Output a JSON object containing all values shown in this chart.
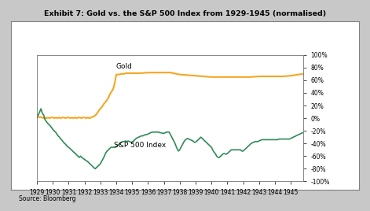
{
  "title": "Exhibit 7: Gold vs. the S&P 500 Index from 1929-1945 (normalised)",
  "source": "Source: Bloomberg",
  "gold_color": "#F5A623",
  "sp500_color": "#2E8B57",
  "gold_label": "Gold",
  "sp500_label": "S&P 500 Index",
  "background_outer": "#D0D0D0",
  "background_inner": "#FFFFFF",
  "xlim": [
    1929.0,
    1945.8
  ],
  "ylim": [
    -1.0,
    1.0
  ],
  "yticks_right": [
    1.0,
    0.8,
    0.6,
    0.4,
    0.2,
    0.0,
    -0.2,
    -0.4,
    -0.6,
    -0.8,
    -1.0
  ],
  "ytick_labels_right": [
    "100%",
    "80%",
    "60%",
    "40%",
    "20%",
    "0%",
    "-20%",
    "-40%",
    "-60%",
    "-80%",
    "-100%"
  ],
  "xticks": [
    1929,
    1930,
    1931,
    1932,
    1933,
    1934,
    1935,
    1936,
    1937,
    1938,
    1939,
    1940,
    1941,
    1942,
    1943,
    1944,
    1945
  ],
  "gold_x": [
    1929.0,
    1929.1,
    1929.2,
    1929.3,
    1929.4,
    1929.5,
    1929.6,
    1929.7,
    1929.8,
    1929.9,
    1930.0,
    1930.1,
    1930.2,
    1930.3,
    1930.4,
    1930.5,
    1930.6,
    1930.7,
    1930.8,
    1930.9,
    1931.0,
    1931.1,
    1931.2,
    1931.3,
    1931.4,
    1931.5,
    1931.6,
    1931.7,
    1931.8,
    1931.9,
    1932.0,
    1932.1,
    1932.2,
    1932.3,
    1932.4,
    1932.5,
    1932.6,
    1932.7,
    1932.8,
    1932.9,
    1933.0,
    1933.1,
    1933.2,
    1933.3,
    1933.4,
    1933.5,
    1933.6,
    1933.7,
    1933.8,
    1933.9,
    1934.0,
    1934.1,
    1934.2,
    1934.3,
    1934.4,
    1934.5,
    1934.6,
    1934.7,
    1934.8,
    1934.9,
    1935.0,
    1935.5,
    1936.0,
    1936.5,
    1937.0,
    1937.2,
    1937.4,
    1937.6,
    1937.8,
    1938.0,
    1938.5,
    1939.0,
    1939.5,
    1940.0,
    1940.5,
    1941.0,
    1941.5,
    1942.0,
    1942.5,
    1943.0,
    1943.5,
    1944.0,
    1944.5,
    1945.0,
    1945.5,
    1945.8
  ],
  "gold_y": [
    0.02,
    0.01,
    0.02,
    0.01,
    0.0,
    0.01,
    0.0,
    0.01,
    0.0,
    0.01,
    0.01,
    0.0,
    0.01,
    0.0,
    0.01,
    0.0,
    0.01,
    0.01,
    0.0,
    0.01,
    0.01,
    0.0,
    0.01,
    0.0,
    0.01,
    0.0,
    0.01,
    0.01,
    0.0,
    0.01,
    0.01,
    0.0,
    0.01,
    0.0,
    0.01,
    0.02,
    0.03,
    0.05,
    0.08,
    0.12,
    0.15,
    0.18,
    0.22,
    0.25,
    0.28,
    0.32,
    0.38,
    0.42,
    0.46,
    0.55,
    0.69,
    0.69,
    0.69,
    0.7,
    0.7,
    0.7,
    0.71,
    0.71,
    0.71,
    0.71,
    0.71,
    0.71,
    0.72,
    0.72,
    0.72,
    0.72,
    0.72,
    0.71,
    0.7,
    0.69,
    0.68,
    0.67,
    0.66,
    0.65,
    0.65,
    0.65,
    0.65,
    0.65,
    0.65,
    0.66,
    0.66,
    0.66,
    0.66,
    0.67,
    0.69,
    0.7
  ],
  "sp500_x": [
    1929.0,
    1929.08,
    1929.17,
    1929.25,
    1929.33,
    1929.42,
    1929.5,
    1929.58,
    1929.67,
    1929.75,
    1929.83,
    1929.92,
    1930.0,
    1930.08,
    1930.17,
    1930.25,
    1930.33,
    1930.42,
    1930.5,
    1930.58,
    1930.67,
    1930.75,
    1930.83,
    1930.92,
    1931.0,
    1931.08,
    1931.17,
    1931.25,
    1931.33,
    1931.42,
    1931.5,
    1931.58,
    1931.67,
    1931.75,
    1931.83,
    1931.92,
    1932.0,
    1932.08,
    1932.17,
    1932.25,
    1932.33,
    1932.42,
    1932.5,
    1932.58,
    1932.67,
    1932.75,
    1932.83,
    1932.92,
    1933.0,
    1933.08,
    1933.17,
    1933.25,
    1933.33,
    1933.42,
    1933.5,
    1933.58,
    1933.67,
    1933.75,
    1933.83,
    1933.92,
    1934.0,
    1934.08,
    1934.17,
    1934.25,
    1934.33,
    1934.42,
    1934.5,
    1934.58,
    1934.67,
    1934.75,
    1934.83,
    1934.92,
    1935.0,
    1935.08,
    1935.17,
    1935.25,
    1935.33,
    1935.42,
    1935.5,
    1935.58,
    1935.67,
    1935.75,
    1935.83,
    1935.92,
    1936.0,
    1936.08,
    1936.17,
    1936.25,
    1936.33,
    1936.42,
    1936.5,
    1936.58,
    1936.67,
    1936.75,
    1936.83,
    1936.92,
    1937.0,
    1937.08,
    1937.17,
    1937.25,
    1937.33,
    1937.42,
    1937.5,
    1937.58,
    1937.67,
    1937.75,
    1937.83,
    1937.92,
    1938.0,
    1938.08,
    1938.17,
    1938.25,
    1938.33,
    1938.42,
    1938.5,
    1938.58,
    1938.67,
    1938.75,
    1938.83,
    1938.92,
    1939.0,
    1939.08,
    1939.17,
    1939.25,
    1939.33,
    1939.42,
    1939.5,
    1939.58,
    1939.67,
    1939.75,
    1939.83,
    1939.92,
    1940.0,
    1940.08,
    1940.17,
    1940.25,
    1940.33,
    1940.42,
    1940.5,
    1940.58,
    1940.67,
    1940.75,
    1940.83,
    1940.92,
    1941.0,
    1941.08,
    1941.17,
    1941.25,
    1941.33,
    1941.42,
    1941.5,
    1941.58,
    1941.67,
    1941.75,
    1941.83,
    1941.92,
    1942.0,
    1942.08,
    1942.17,
    1942.25,
    1942.33,
    1942.42,
    1942.5,
    1942.58,
    1942.67,
    1942.75,
    1942.83,
    1942.92,
    1943.0,
    1943.08,
    1943.17,
    1943.25,
    1943.33,
    1943.42,
    1943.5,
    1943.58,
    1943.67,
    1943.75,
    1943.83,
    1943.92,
    1944.0,
    1944.08,
    1944.17,
    1944.25,
    1944.33,
    1944.42,
    1944.5,
    1944.58,
    1944.67,
    1944.75,
    1944.83,
    1944.92,
    1945.0,
    1945.08,
    1945.17,
    1945.25,
    1945.33,
    1945.42,
    1945.5,
    1945.58,
    1945.67,
    1945.75
  ],
  "sp500_y": [
    0.01,
    0.05,
    0.1,
    0.15,
    0.08,
    0.05,
    -0.02,
    -0.05,
    -0.08,
    -0.1,
    -0.12,
    -0.15,
    -0.18,
    -0.2,
    -0.22,
    -0.25,
    -0.28,
    -0.3,
    -0.33,
    -0.35,
    -0.38,
    -0.4,
    -0.42,
    -0.45,
    -0.46,
    -0.48,
    -0.5,
    -0.52,
    -0.54,
    -0.56,
    -0.58,
    -0.6,
    -0.62,
    -0.6,
    -0.62,
    -0.64,
    -0.65,
    -0.67,
    -0.68,
    -0.7,
    -0.72,
    -0.74,
    -0.76,
    -0.78,
    -0.8,
    -0.78,
    -0.76,
    -0.74,
    -0.72,
    -0.68,
    -0.64,
    -0.6,
    -0.55,
    -0.52,
    -0.5,
    -0.48,
    -0.46,
    -0.46,
    -0.46,
    -0.46,
    -0.45,
    -0.43,
    -0.41,
    -0.4,
    -0.38,
    -0.37,
    -0.37,
    -0.36,
    -0.37,
    -0.36,
    -0.37,
    -0.38,
    -0.38,
    -0.36,
    -0.34,
    -0.32,
    -0.31,
    -0.3,
    -0.29,
    -0.28,
    -0.28,
    -0.27,
    -0.26,
    -0.26,
    -0.25,
    -0.24,
    -0.23,
    -0.22,
    -0.22,
    -0.22,
    -0.22,
    -0.22,
    -0.22,
    -0.23,
    -0.23,
    -0.24,
    -0.24,
    -0.23,
    -0.22,
    -0.22,
    -0.22,
    -0.26,
    -0.3,
    -0.34,
    -0.38,
    -0.43,
    -0.48,
    -0.52,
    -0.5,
    -0.46,
    -0.42,
    -0.38,
    -0.35,
    -0.33,
    -0.32,
    -0.33,
    -0.34,
    -0.35,
    -0.36,
    -0.38,
    -0.38,
    -0.36,
    -0.34,
    -0.32,
    -0.3,
    -0.32,
    -0.34,
    -0.36,
    -0.38,
    -0.4,
    -0.42,
    -0.44,
    -0.46,
    -0.5,
    -0.54,
    -0.56,
    -0.6,
    -0.62,
    -0.62,
    -0.6,
    -0.58,
    -0.56,
    -0.56,
    -0.57,
    -0.56,
    -0.54,
    -0.52,
    -0.5,
    -0.5,
    -0.5,
    -0.5,
    -0.5,
    -0.5,
    -0.5,
    -0.5,
    -0.52,
    -0.52,
    -0.5,
    -0.48,
    -0.46,
    -0.44,
    -0.42,
    -0.4,
    -0.39,
    -0.38,
    -0.37,
    -0.37,
    -0.37,
    -0.36,
    -0.35,
    -0.34,
    -0.34,
    -0.34,
    -0.34,
    -0.34,
    -0.34,
    -0.34,
    -0.34,
    -0.34,
    -0.34,
    -0.34,
    -0.34,
    -0.34,
    -0.33,
    -0.33,
    -0.33,
    -0.33,
    -0.33,
    -0.33,
    -0.33,
    -0.33,
    -0.33,
    -0.32,
    -0.31,
    -0.3,
    -0.29,
    -0.28,
    -0.27,
    -0.26,
    -0.25,
    -0.24,
    -0.23
  ]
}
